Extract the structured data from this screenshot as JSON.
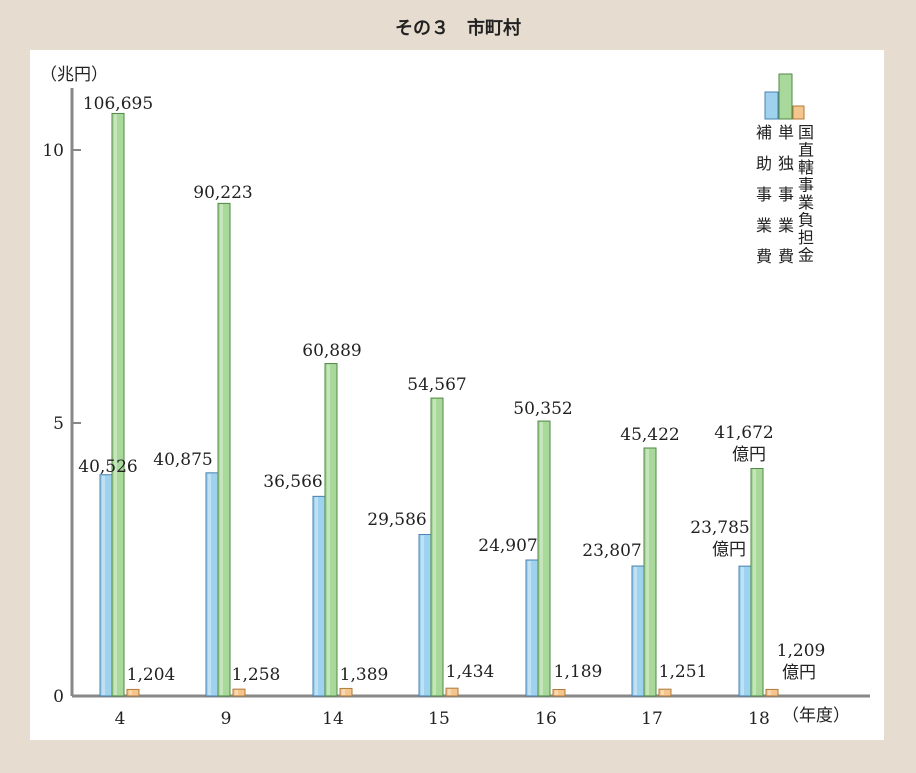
{
  "title": "その３　市町村",
  "chart_data": {
    "type": "bar",
    "ylabel": "（兆円）",
    "xlabel": "（年度）",
    "ylim": [
      0,
      11
    ],
    "yticks": [
      "0",
      "5",
      "10"
    ],
    "categories": [
      "4",
      "9",
      "14",
      "15",
      "16",
      "17",
      "18"
    ],
    "series": [
      {
        "name": "補助事業費",
        "color": "#9fd2ef",
        "values": [
          40526,
          40875,
          36566,
          29586,
          24907,
          23807,
          23785
        ],
        "labels": [
          "40,526",
          "40,875",
          "36,566",
          "29,586",
          "24,907",
          "23,807",
          "23,785"
        ]
      },
      {
        "name": "単独事業費",
        "color": "#a8d89a",
        "values": [
          106695,
          90223,
          60889,
          54567,
          50352,
          45422,
          41672
        ],
        "labels": [
          "106,695",
          "90,223",
          "60,889",
          "54,567",
          "50,352",
          "45,422",
          "41,672"
        ]
      },
      {
        "name": "国直轄事業負担金",
        "color": "#f4c58d",
        "values": [
          1204,
          1258,
          1389,
          1434,
          1189,
          1251,
          1209
        ],
        "labels": [
          "1,204",
          "1,258",
          "1,389",
          "1,434",
          "1,189",
          "1,251",
          "1,209"
        ]
      }
    ],
    "unit_annotation": "億円",
    "legend_position": "top-right"
  }
}
